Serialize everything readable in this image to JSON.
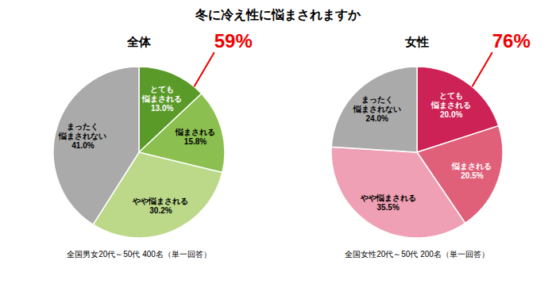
{
  "title": "冬に冷え性に悩まされますか",
  "chart_data": [
    {
      "type": "pie",
      "title": "全体",
      "subtitle": "全国男女20代～50代 400名（単一回答）",
      "categories": [
        "とても\n悩まされる",
        "悩まされる",
        "やや悩まされる",
        "まったく\n悩まされない"
      ],
      "values": [
        13.0,
        15.8,
        30.2,
        41.0
      ],
      "value_labels": [
        "13.0%",
        "15.8%",
        "30.2%",
        "41.0%"
      ],
      "colors": [
        "#5a9a28",
        "#8bbf50",
        "#bcd98a",
        "#aaaaaa"
      ],
      "data_labels": true,
      "annotations": [
        {
          "text": "59%",
          "color": "#ee0000"
        }
      ]
    },
    {
      "type": "pie",
      "title": "女性",
      "subtitle": "全国女性20代～50代 200名（単一回答）",
      "categories": [
        "とても\n悩まされる",
        "悩まされる",
        "やや悩まされる",
        "まったく\n悩まされない"
      ],
      "values": [
        20.0,
        20.5,
        35.5,
        24.0
      ],
      "value_labels": [
        "20.0%",
        "20.5%",
        "35.5%",
        "24.0%"
      ],
      "colors": [
        "#cc2255",
        "#e0607a",
        "#f0a0b4",
        "#aaaaaa"
      ],
      "data_labels": true,
      "annotations": [
        {
          "text": "76%",
          "color": "#ee0000"
        }
      ]
    }
  ]
}
